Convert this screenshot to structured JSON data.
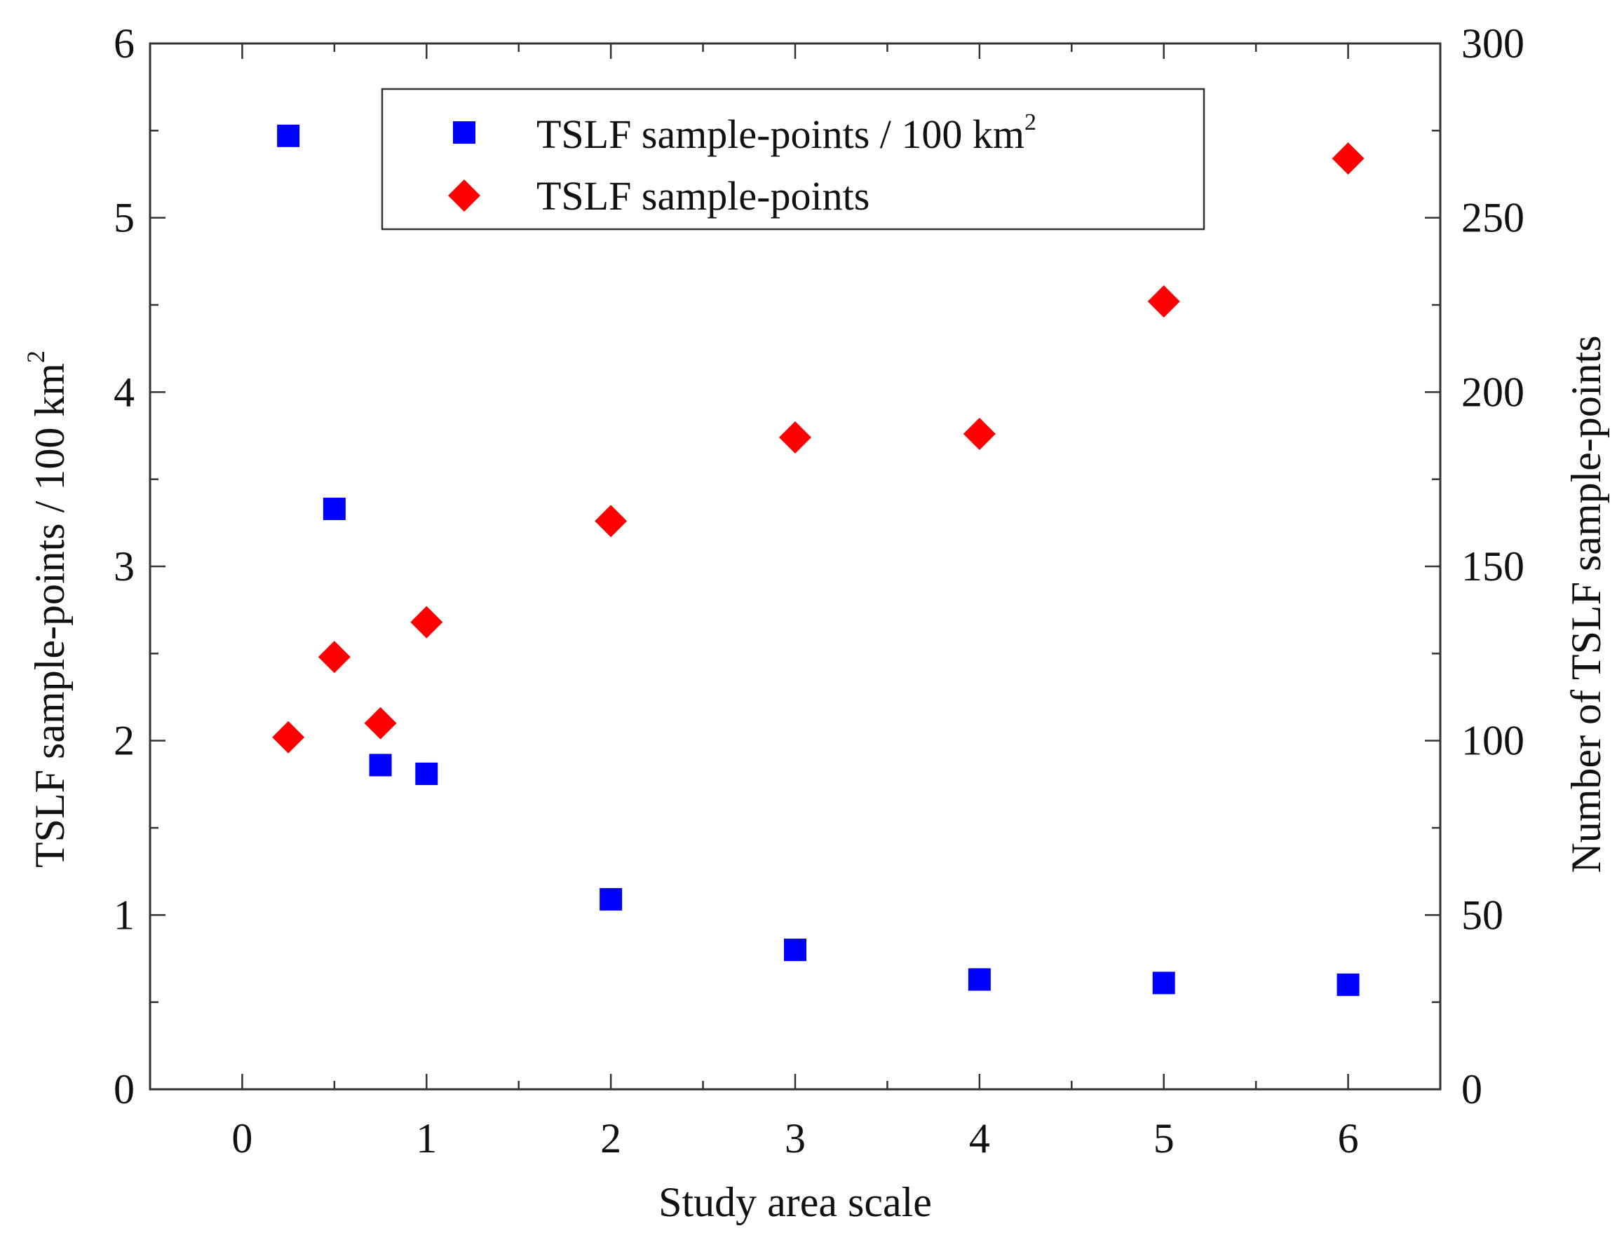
{
  "chart_data": {
    "type": "scatter",
    "xlabel": "Study area scale",
    "ylabel_left": "TSLF sample-points / 100 km",
    "ylabel_left_superscript": "2",
    "ylabel_right": "Number of TSLF sample-points",
    "xlim": [
      -0.5,
      6.5
    ],
    "ylim_left": [
      0,
      6
    ],
    "ylim_right": [
      0,
      300
    ],
    "x_ticks": [
      "0",
      "1",
      "2",
      "3",
      "4",
      "5",
      "6"
    ],
    "y_left_ticks": [
      "0",
      "1",
      "2",
      "3",
      "4",
      "5",
      "6"
    ],
    "y_right_ticks": [
      "0",
      "50",
      "100",
      "150",
      "200",
      "250",
      "300"
    ],
    "grid": false,
    "legend_position": "top-center",
    "series": [
      {
        "name": "TSLF sample-points / 100 km",
        "name_superscript": "2",
        "axis": "left",
        "marker": "square",
        "color": "#0000ff",
        "points": [
          {
            "x": 0.25,
            "y": 5.47
          },
          {
            "x": 0.5,
            "y": 3.33
          },
          {
            "x": 0.75,
            "y": 1.86
          },
          {
            "x": 1,
            "y": 1.81
          },
          {
            "x": 2,
            "y": 1.09
          },
          {
            "x": 3,
            "y": 0.8
          },
          {
            "x": 4,
            "y": 0.63
          },
          {
            "x": 5,
            "y": 0.61
          },
          {
            "x": 6,
            "y": 0.6
          }
        ]
      },
      {
        "name": "TSLF sample-points",
        "axis": "right",
        "marker": "diamond",
        "color": "#ff0000",
        "points": [
          {
            "x": 0.25,
            "y": 101
          },
          {
            "x": 0.5,
            "y": 124
          },
          {
            "x": 0.75,
            "y": 105
          },
          {
            "x": 1,
            "y": 134
          },
          {
            "x": 2,
            "y": 163
          },
          {
            "x": 3,
            "y": 187
          },
          {
            "x": 4,
            "y": 188
          },
          {
            "x": 5,
            "y": 226
          },
          {
            "x": 6,
            "y": 267
          }
        ]
      }
    ]
  }
}
